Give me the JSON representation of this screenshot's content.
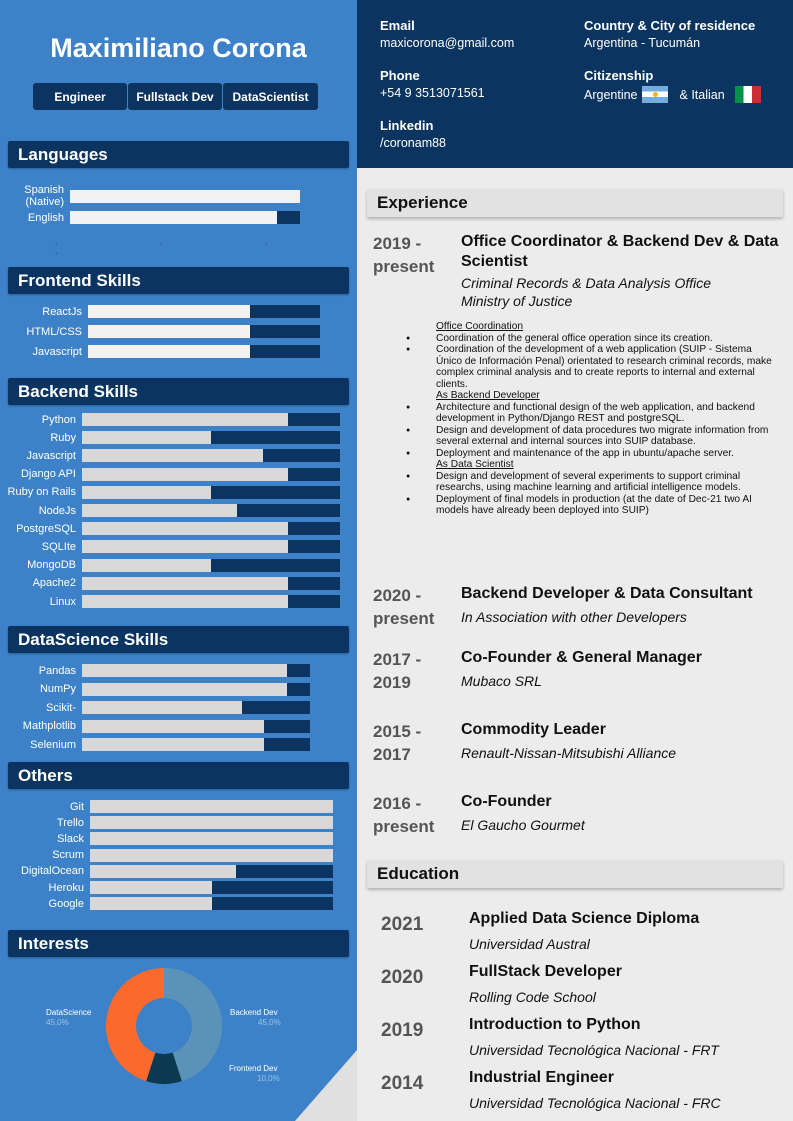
{
  "profile": {
    "name": "Maximiliano Corona",
    "tags": [
      "Engineer",
      "Fullstack Dev",
      "DataScientist"
    ]
  },
  "contact": {
    "email_label": "Email",
    "email": "maxicorona@gmail.com",
    "phone_label": "Phone",
    "phone": "+54 9 3513071561",
    "linkedin_label": "Linkedin",
    "linkedin": "/coronam88",
    "country_label": "Country & City of residence",
    "country": "Argentina - Tucumán",
    "citizenship_label": "Citizenship",
    "citizenship_1": "Argentine",
    "citizenship_2": "& Italian"
  },
  "sections": {
    "languages": "Languages",
    "frontend": "Frontend Skills",
    "backend": "Backend Skills",
    "datascience": "DataScience Skills",
    "others": "Others",
    "interests": "Interests",
    "experience": "Experience",
    "education": "Education"
  },
  "languages": [
    {
      "name": "Spanish (Native)",
      "level": 1.0
    },
    {
      "name": "English",
      "level": 0.9
    }
  ],
  "frontend_skills": [
    {
      "name": "ReactJs",
      "level": 0.7
    },
    {
      "name": "HTML/CSS",
      "level": 0.7
    },
    {
      "name": "Javascript",
      "level": 0.7
    }
  ],
  "backend_skills": [
    {
      "name": "Python",
      "level": 0.8
    },
    {
      "name": "Ruby",
      "level": 0.5
    },
    {
      "name": "Javascript",
      "level": 0.7
    },
    {
      "name": "Django API",
      "level": 0.8
    },
    {
      "name": "Ruby on Rails",
      "level": 0.5
    },
    {
      "name": "NodeJs",
      "level": 0.6
    },
    {
      "name": "PostgreSQL",
      "level": 0.8
    },
    {
      "name": "SQLIte",
      "level": 0.8
    },
    {
      "name": "MongoDB",
      "level": 0.5
    },
    {
      "name": "Apache2",
      "level": 0.8
    },
    {
      "name": "Linux",
      "level": 0.8
    }
  ],
  "datascience_skills": [
    {
      "name": "Pandas",
      "level": 0.9
    },
    {
      "name": "NumPy",
      "level": 0.9
    },
    {
      "name": "Scikit-",
      "level": 0.7
    },
    {
      "name": "Mathplotlib",
      "level": 0.8
    },
    {
      "name": "Selenium",
      "level": 0.8
    }
  ],
  "other_skills": [
    {
      "name": "Git",
      "level": 1.0
    },
    {
      "name": "Trello",
      "level": 1.0
    },
    {
      "name": "Slack",
      "level": 1.0
    },
    {
      "name": "Scrum",
      "level": 1.0
    },
    {
      "name": "DigitalOcean",
      "level": 0.6
    },
    {
      "name": "Heroku",
      "level": 0.5
    },
    {
      "name": "Google",
      "level": 0.5
    }
  ],
  "chart_data": {
    "type": "pie",
    "title": "",
    "categories": [
      "DataScience",
      "Backend Dev",
      "Frontend Dev"
    ],
    "values": [
      45.0,
      45.0,
      10.0
    ],
    "labels": [
      "45,0%",
      "45,0%",
      "10,0%"
    ],
    "colors": [
      "#fb6a2c",
      "#5b93b8",
      "#0b3a50"
    ]
  },
  "experience": [
    {
      "years": "2019 - present",
      "title": "Office Coordinator & Backend Dev & Data Scientist",
      "org": "Criminal Records & Data Analysis Office",
      "org2": "Ministry of Justice"
    },
    {
      "years": "2020 - present",
      "title": "Backend Developer & Data Consultant",
      "org": "In Association with other Developers"
    },
    {
      "years": "2017 - 2019",
      "title": "Co-Founder & General Manager",
      "org": "Mubaco SRL"
    },
    {
      "years": "2015 - 2017",
      "title": "Commodity Leader",
      "org": "Renault-Nissan-Mitsubishi Alliance"
    },
    {
      "years": "2016 - present",
      "title": "Co-Founder",
      "org": "El Gaucho Gourmet"
    }
  ],
  "details": {
    "office_head": "Office Coordination",
    "office_1": "Coordination of the general office operation since its creation.",
    "office_2": "Coordination of the development of a web application (SUIP - Sistema Único de Información Penal)  orientated to research criminal records, make complex criminal analysis and to create reports to internal and external clients.",
    "backend_head": "As Backend Developer",
    "backend_1": "Architecture and functional design of the web application, and backend development in Python/Django REST and postgreSQL.",
    "backend_2": "Design and development of data procedures two migrate information from several external and internal sources into SUIP database.",
    "backend_3": "Deployment and maintenance of the app in ubuntu/apache server.",
    "ds_head": "As Data Scientist",
    "ds_1": "Design and development of several experiments to support criminal researchs, using machine learning and artificial intelligence models.",
    "ds_2": "Deployment of final models in production (at the date of Dec-21 two AI models have already been deployed into SUIP)"
  },
  "education": [
    {
      "year": "2021",
      "title": "Applied Data Science Diploma",
      "school": "Universidad Austral"
    },
    {
      "year": "2020",
      "title": "FullStack Developer",
      "school": "Rolling Code School"
    },
    {
      "year": "2019",
      "title": "Introduction to Python",
      "school": "Universidad Tecnológica Nacional - FRT"
    },
    {
      "year": "2014",
      "title": "Industrial Engineer",
      "school": "Universidad Tecnológica Nacional - FRC"
    }
  ]
}
